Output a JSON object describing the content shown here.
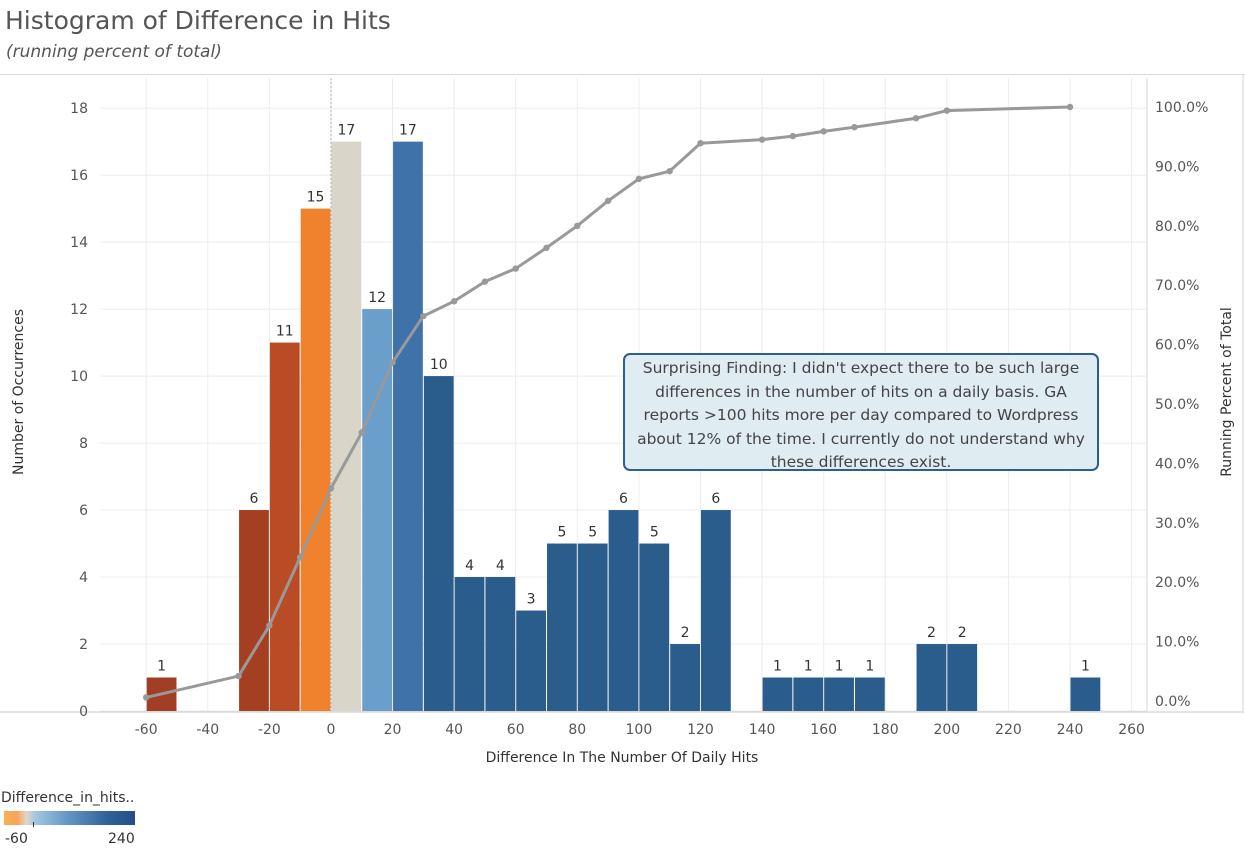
{
  "header": {
    "title": "Histogram of Difference in Hits",
    "subtitle": "(running percent of total)"
  },
  "annotation": {
    "text": "Surprising Finding: I didn't expect there to be such large differences in the number of hits on a daily basis. GA reports  >100 hits more per day compared to Wordpress about 12% of the time. I currently do not understand why these differences exist."
  },
  "legend": {
    "title": "Difference_in_hits..",
    "min_label": "-60",
    "max_label": "240"
  },
  "chart_data": {
    "type": "bar",
    "title": "Histogram of Difference in Hits",
    "subtitle": "(running percent of total)",
    "xlabel": "Difference In The Number Of Daily Hits",
    "ylabel": "Number of Occurrences",
    "y2label": "Running Percent of Total",
    "xlim": [
      -75,
      265
    ],
    "ylim": [
      0,
      18.9
    ],
    "y2lim": [
      0,
      100
    ],
    "x_ticks": [
      -60,
      -40,
      -20,
      0,
      20,
      40,
      60,
      80,
      100,
      120,
      140,
      160,
      180,
      200,
      220,
      240,
      260
    ],
    "y_ticks": [
      0,
      2,
      4,
      6,
      8,
      10,
      12,
      14,
      16,
      18
    ],
    "y2_ticks": [
      "0.0%",
      "10.0%",
      "20.0%",
      "30.0%",
      "40.0%",
      "50.0%",
      "60.0%",
      "70.0%",
      "80.0%",
      "90.0%",
      "100.0%"
    ],
    "bin_width": 10,
    "bins": [
      {
        "start": -60,
        "count": 1,
        "color": "#a13e24"
      },
      {
        "start": -30,
        "count": 6,
        "color": "#a53f22"
      },
      {
        "start": -20,
        "count": 11,
        "color": "#b94c25"
      },
      {
        "start": -10,
        "count": 15,
        "color": "#f0822d"
      },
      {
        "start": 0,
        "count": 17,
        "color": "#d9d5c9"
      },
      {
        "start": 10,
        "count": 12,
        "color": "#6a9fcb"
      },
      {
        "start": 20,
        "count": 17,
        "color": "#3f72a8"
      },
      {
        "start": 30,
        "count": 10,
        "color": "#2b5d8c"
      },
      {
        "start": 40,
        "count": 4,
        "color": "#2b5d8c"
      },
      {
        "start": 50,
        "count": 4,
        "color": "#2b5d8c"
      },
      {
        "start": 60,
        "count": 3,
        "color": "#2b5d8c"
      },
      {
        "start": 70,
        "count": 5,
        "color": "#2b5d8c"
      },
      {
        "start": 80,
        "count": 5,
        "color": "#2b5d8c"
      },
      {
        "start": 90,
        "count": 6,
        "color": "#2b5d8c"
      },
      {
        "start": 100,
        "count": 5,
        "color": "#2b5d8c"
      },
      {
        "start": 110,
        "count": 2,
        "color": "#2b5d8c"
      },
      {
        "start": 120,
        "count": 6,
        "color": "#2b5d8c"
      },
      {
        "start": 140,
        "count": 1,
        "color": "#2b5d8c"
      },
      {
        "start": 150,
        "count": 1,
        "color": "#2b5d8c"
      },
      {
        "start": 160,
        "count": 1,
        "color": "#2b5d8c"
      },
      {
        "start": 170,
        "count": 1,
        "color": "#2b5d8c"
      },
      {
        "start": 190,
        "count": 2,
        "color": "#2b5d8c"
      },
      {
        "start": 200,
        "count": 2,
        "color": "#2b5d8c"
      },
      {
        "start": 240,
        "count": 1,
        "color": "#2b5d8c"
      }
    ],
    "running_percent": {
      "x": [
        -60,
        -30,
        -20,
        -10,
        0,
        10,
        20,
        30,
        40,
        50,
        60,
        70,
        80,
        90,
        100,
        110,
        120,
        140,
        150,
        160,
        170,
        190,
        200,
        240
      ],
      "values": [
        0.6,
        4.2,
        12.7,
        24.2,
        35.8,
        45.2,
        57.0,
        64.8,
        67.3,
        70.6,
        72.8,
        76.3,
        80.0,
        84.2,
        87.9,
        89.2,
        93.9,
        94.5,
        95.1,
        95.9,
        96.6,
        98.1,
        99.4,
        100.0
      ],
      "color": "#999999"
    },
    "colors": {
      "line": "#999999",
      "grid": "#ececec",
      "axis": "#d0d0d0"
    }
  }
}
